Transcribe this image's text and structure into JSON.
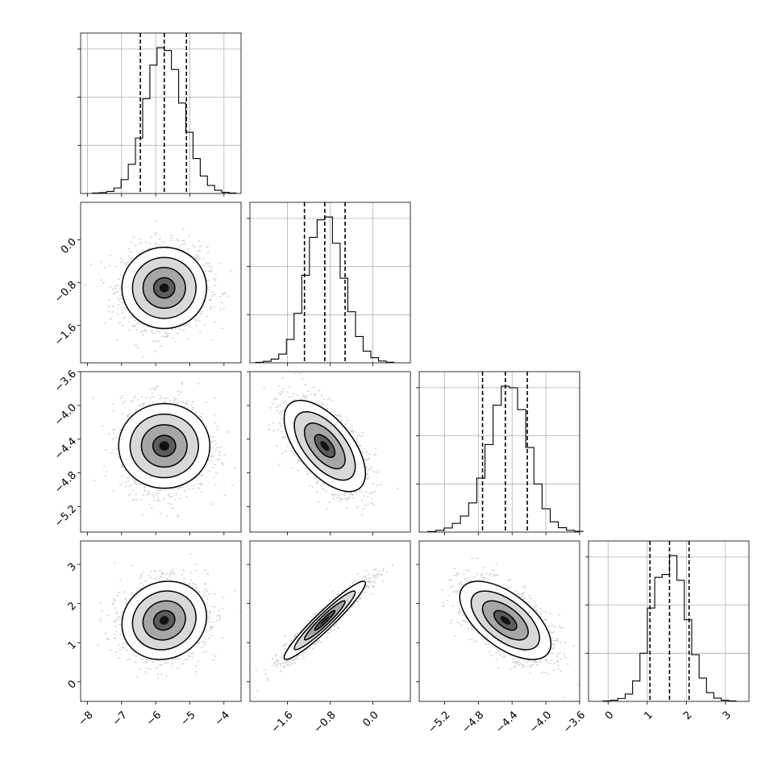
{
  "chart_data": {
    "type": "corner",
    "grid": true,
    "quantile_lines": "dashed",
    "contour_levels": 4,
    "params": [
      {
        "index": 0,
        "mean": -5.75,
        "std": 0.62,
        "q16": -6.45,
        "q50": -5.75,
        "q84": -5.1,
        "range": [
          -8.2,
          -3.5
        ],
        "ticks": [
          -8,
          -7,
          -6,
          -5,
          -4
        ],
        "tick_labels": [
          "−8",
          "−7",
          "−6",
          "−5",
          "−4"
        ],
        "hist": [
          3,
          6,
          14,
          38,
          95,
          200,
          380,
          650,
          880,
          1000,
          980,
          850,
          620,
          420,
          240,
          120,
          55,
          22,
          8,
          3
        ]
      },
      {
        "index": 1,
        "mean": -0.9,
        "std": 0.38,
        "q16": -1.28,
        "q50": -0.9,
        "q84": -0.52,
        "range": [
          -2.3,
          0.7
        ],
        "ticks": [
          -1.6,
          -0.8,
          0.0
        ],
        "tick_labels": [
          "−1.6",
          "−0.8",
          "0.0"
        ],
        "hist": [
          3,
          10,
          25,
          60,
          160,
          340,
          600,
          860,
          980,
          1000,
          820,
          580,
          350,
          180,
          80,
          35,
          12,
          4
        ]
      },
      {
        "index": 2,
        "mean": -4.48,
        "std": 0.27,
        "q16": -4.75,
        "q50": -4.48,
        "q84": -4.22,
        "range": [
          -5.5,
          -3.6
        ],
        "ticks": [
          -5.2,
          -4.8,
          -4.4,
          -4.0,
          -3.6
        ],
        "tick_labels": [
          "−5.2",
          "−4.8",
          "−4.4",
          "−4.0",
          "−3.6"
        ],
        "hist": [
          4,
          12,
          28,
          60,
          110,
          200,
          370,
          600,
          870,
          1000,
          990,
          840,
          580,
          330,
          160,
          70,
          30,
          12,
          5
        ]
      },
      {
        "index": 3,
        "mean": 1.57,
        "std": 0.5,
        "q16": 1.07,
        "q50": 1.57,
        "q84": 2.07,
        "range": [
          -0.5,
          3.6
        ],
        "ticks": [
          0,
          1,
          2,
          3
        ],
        "tick_labels": [
          "0",
          "1",
          "2",
          "3"
        ],
        "hist": [
          3,
          8,
          20,
          50,
          140,
          330,
          640,
          850,
          870,
          1000,
          830,
          560,
          320,
          160,
          60,
          22,
          8,
          3
        ]
      }
    ],
    "correlations": [
      {
        "row": 1,
        "col": 0,
        "rho": 0.0
      },
      {
        "row": 2,
        "col": 0,
        "rho": 0.0
      },
      {
        "row": 2,
        "col": 1,
        "rho": -0.6
      },
      {
        "row": 3,
        "col": 0,
        "rho": 0.1
      },
      {
        "row": 3,
        "col": 1,
        "rho": 0.95
      },
      {
        "row": 3,
        "col": 2,
        "rho": -0.6
      }
    ]
  }
}
